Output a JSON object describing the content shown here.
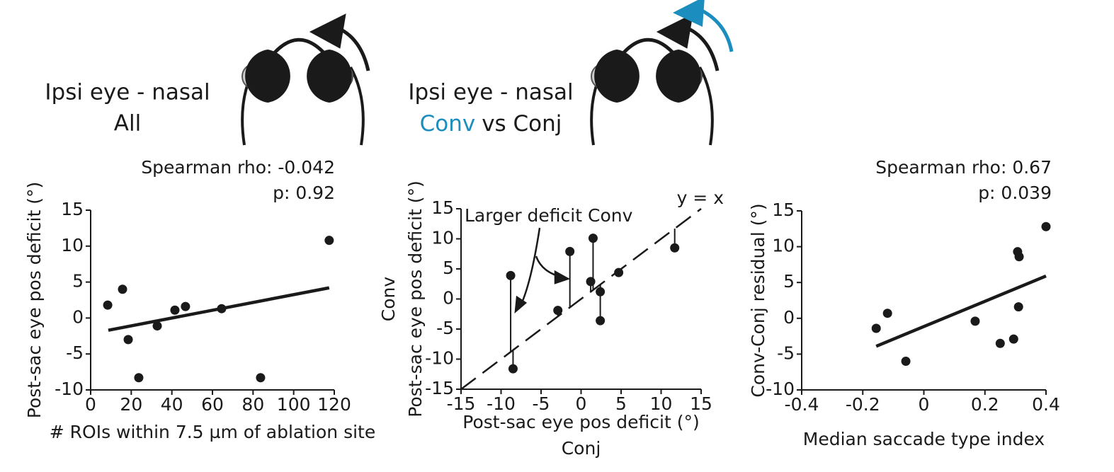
{
  "chart_data": [
    {
      "type": "scatter",
      "title": "Ipsi eye - nasal",
      "subtitle": "All",
      "xlabel": "# ROIs within 7.5 µm of ablation site",
      "ylabel": "Post-sac eye pos deficit (°)",
      "annotations": [
        "Spearman rho: -0.042",
        "p: 0.92"
      ],
      "x": [
        8.4,
        15.7,
        18.5,
        23.7,
        32.8,
        41.5,
        46.7,
        64.5,
        83.7,
        117.5
      ],
      "values": [
        1.8,
        4.0,
        -3.0,
        -8.3,
        -1.1,
        1.1,
        1.6,
        1.3,
        -8.3,
        10.8
      ],
      "color": "#1a1a1a",
      "fit": {
        "x": [
          8.7,
          117.5
        ],
        "values": [
          -1.7,
          4.2
        ]
      },
      "xlim": [
        0,
        120
      ],
      "xticks": [
        0,
        20,
        40,
        60,
        80,
        100,
        120
      ],
      "ylim": [
        -10,
        15
      ],
      "yticks": [
        -10,
        -5,
        0,
        5,
        10,
        15
      ]
    },
    {
      "type": "scatter",
      "title": "Ipsi eye - nasal",
      "subtitle": [
        "Conv",
        "vs Conj"
      ],
      "xlabel": [
        "Post-sac eye pos deficit (°)",
        "Conj"
      ],
      "ylabel": [
        "Conv",
        "Post-sac eye pos deficit (°)"
      ],
      "annotations": [
        "Larger deficit Conv",
        "y = x"
      ],
      "x": [
        -8.8,
        -8.5,
        -2.9,
        -1.4,
        1.5,
        1.2,
        2.4,
        2.4,
        4.7,
        11.7
      ],
      "values": [
        3.9,
        -11.6,
        -1.9,
        7.9,
        10.1,
        2.9,
        1.2,
        -3.6,
        4.4,
        8.5
      ],
      "color": "#1a1a1a",
      "accent_color": "#1b8dbf",
      "xlim": [
        -15,
        15
      ],
      "xticks": [
        -15,
        -10,
        -5,
        0,
        5,
        10,
        15
      ],
      "ylim": [
        -15,
        15
      ],
      "yticks": [
        -15,
        -10,
        -5,
        0,
        5,
        10,
        15
      ]
    },
    {
      "type": "scatter",
      "xlabel": "Median saccade type index",
      "ylabel": "Conv-Conj residual (°)",
      "annotations": [
        "Spearman rho: 0.67",
        "p: 0.039"
      ],
      "x": [
        -0.156,
        -0.119,
        -0.059,
        0.168,
        0.25,
        0.294,
        0.307,
        0.312,
        0.31,
        0.4
      ],
      "values": [
        -1.4,
        0.7,
        -6.0,
        -0.4,
        -3.5,
        -2.9,
        9.3,
        8.6,
        1.6,
        12.8
      ],
      "color": "#1a1a1a",
      "fit": {
        "x": [
          -0.156,
          0.4
        ],
        "values": [
          -3.9,
          5.9
        ]
      },
      "xlim": [
        -0.4,
        0.4
      ],
      "xticks": [
        -0.4,
        -0.2,
        0,
        0.2,
        0.4
      ],
      "ylim": [
        -10,
        15
      ],
      "yticks": [
        -10,
        -5,
        0,
        5,
        10,
        15
      ]
    }
  ]
}
